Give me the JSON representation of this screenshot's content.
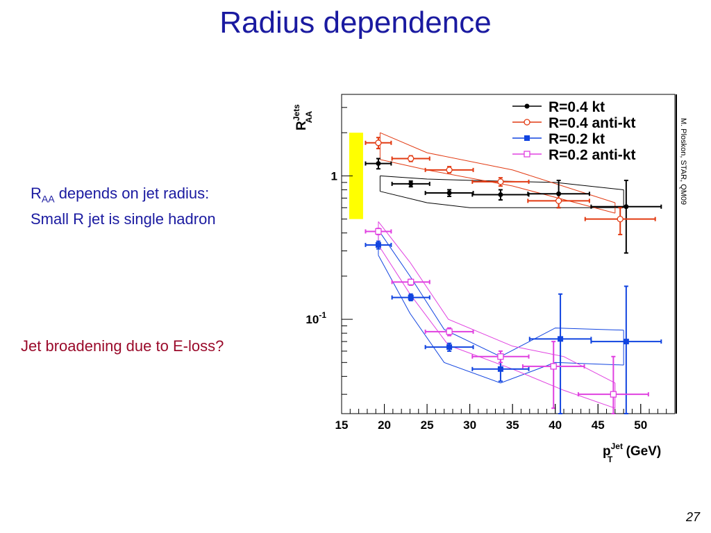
{
  "title": "Radius dependence",
  "notes": {
    "raa_symbol": "R",
    "raa_subscript": "AA",
    "raa_rest": " depends on jet radius:",
    "line2": "Small R jet is single hadron",
    "eloss": "Jet broadening due to E-loss?"
  },
  "credit": "M. Ploskon, STAR, QM09",
  "page_number": "27",
  "colors": {
    "kt04": "#000000",
    "antikt04": "#e23a12",
    "kt02": "#1144e0",
    "antikt02": "#e040e0",
    "band": "#ffff00",
    "title": "#1a1aa0",
    "eloss_text": "#9a0a2a"
  },
  "chart_data": {
    "type": "scatter",
    "yscale": "log",
    "xlim": [
      15,
      54
    ],
    "ylim": [
      0.022,
      3.7
    ],
    "xlabel": {
      "main": "p",
      "sup": "Jet",
      "sub": "T",
      "rest": " (GeV)"
    },
    "ylabel": {
      "main": "R",
      "sup": "Jets",
      "sub": "AA"
    },
    "x_ticks": [
      15,
      20,
      25,
      30,
      35,
      40,
      45,
      50
    ],
    "y_ticks": [
      {
        "value": 1,
        "label": "1",
        "sup": ""
      },
      {
        "value": 0.1,
        "label": "10",
        "sup": "-1"
      }
    ],
    "legend_position": "top-right",
    "normalization_band": {
      "x": 16.7,
      "ylow": 0.5,
      "yhigh": 2.0
    },
    "series": [
      {
        "name": "R=0.4 kt",
        "color_key": "kt04",
        "marker": "filled-circle",
        "points": [
          {
            "x": 19.3,
            "y": 1.22,
            "xerr": 1.5,
            "ylo": 1.12,
            "yhi": 1.32
          },
          {
            "x": 23.1,
            "y": 0.88,
            "xerr": 2.2,
            "ylo": 0.84,
            "yhi": 0.92
          },
          {
            "x": 27.6,
            "y": 0.76,
            "xerr": 2.8,
            "ylo": 0.72,
            "yhi": 0.8
          },
          {
            "x": 33.6,
            "y": 0.74,
            "xerr": 3.3,
            "ylo": 0.68,
            "yhi": 0.8
          },
          {
            "x": 40.4,
            "y": 0.75,
            "xerr": 3.6,
            "ylo": 0.6,
            "yhi": 0.93
          },
          {
            "x": 48.3,
            "y": 0.61,
            "xerr": 4.1,
            "ylo": 0.29,
            "yhi": 0.93
          }
        ],
        "sys_upper": [
          [
            19.5,
            1.0
          ],
          [
            25,
            0.95
          ],
          [
            30,
            0.93
          ],
          [
            40,
            0.9
          ],
          [
            48,
            0.8
          ]
        ],
        "sys_lower": [
          [
            19.5,
            0.78
          ],
          [
            25,
            0.65
          ],
          [
            30,
            0.6
          ],
          [
            40,
            0.6
          ],
          [
            48,
            0.6
          ]
        ]
      },
      {
        "name": "R=0.4 anti-kt",
        "color_key": "antikt04",
        "marker": "open-circle",
        "points": [
          {
            "x": 19.3,
            "y": 1.7,
            "xerr": 1.5,
            "ylo": 1.55,
            "yhi": 1.85
          },
          {
            "x": 23.1,
            "y": 1.32,
            "xerr": 2.2,
            "ylo": 1.26,
            "yhi": 1.38
          },
          {
            "x": 27.6,
            "y": 1.1,
            "xerr": 2.8,
            "ylo": 1.05,
            "yhi": 1.16
          },
          {
            "x": 33.6,
            "y": 0.91,
            "xerr": 3.3,
            "ylo": 0.85,
            "yhi": 0.97
          },
          {
            "x": 40.4,
            "y": 0.67,
            "xerr": 3.6,
            "ylo": 0.6,
            "yhi": 0.76
          },
          {
            "x": 47.6,
            "y": 0.5,
            "xerr": 4.1,
            "ylo": 0.39,
            "yhi": 0.6
          }
        ],
        "sys_upper": [
          [
            19.5,
            2.0
          ],
          [
            25,
            1.45
          ],
          [
            35,
            1.1
          ],
          [
            47,
            0.65
          ]
        ],
        "sys_lower": [
          [
            19.5,
            1.3
          ],
          [
            25,
            1.1
          ],
          [
            35,
            0.85
          ],
          [
            47,
            0.55
          ]
        ]
      },
      {
        "name": "R=0.2 kt",
        "color_key": "kt02",
        "marker": "filled-square",
        "points": [
          {
            "x": 19.3,
            "y": 0.33,
            "xerr": 1.5,
            "ylo": 0.31,
            "yhi": 0.35
          },
          {
            "x": 23.1,
            "y": 0.142,
            "xerr": 2.2,
            "ylo": 0.135,
            "yhi": 0.15
          },
          {
            "x": 27.6,
            "y": 0.064,
            "xerr": 2.8,
            "ylo": 0.06,
            "yhi": 0.068
          },
          {
            "x": 33.6,
            "y": 0.045,
            "xerr": 3.3,
            "ylo": 0.037,
            "yhi": 0.053
          },
          {
            "x": 40.6,
            "y": 0.073,
            "xerr": 3.6,
            "ylo": 0.022,
            "yhi": 0.15
          },
          {
            "x": 48.3,
            "y": 0.07,
            "xerr": 4.1,
            "ylo": 0.022,
            "yhi": 0.17
          }
        ],
        "sys_upper": [
          [
            19.3,
            0.42
          ],
          [
            23,
            0.2
          ],
          [
            27,
            0.085
          ],
          [
            33.6,
            0.055
          ],
          [
            40,
            0.087
          ],
          [
            48,
            0.084
          ]
        ],
        "sys_lower": [
          [
            19.3,
            0.28
          ],
          [
            23,
            0.11
          ],
          [
            27,
            0.05
          ],
          [
            33.6,
            0.036
          ],
          [
            40,
            0.05
          ],
          [
            48,
            0.048
          ]
        ]
      },
      {
        "name": "R=0.2 anti-kt",
        "color_key": "antikt02",
        "marker": "open-square",
        "points": [
          {
            "x": 19.3,
            "y": 0.41,
            "xerr": 1.5,
            "ylo": 0.39,
            "yhi": 0.43
          },
          {
            "x": 23.1,
            "y": 0.182,
            "xerr": 2.2,
            "ylo": 0.173,
            "yhi": 0.19
          },
          {
            "x": 27.6,
            "y": 0.082,
            "xerr": 2.8,
            "ylo": 0.077,
            "yhi": 0.087
          },
          {
            "x": 33.6,
            "y": 0.055,
            "xerr": 3.3,
            "ylo": 0.05,
            "yhi": 0.06
          },
          {
            "x": 39.8,
            "y": 0.047,
            "xerr": 3.6,
            "ylo": 0.024,
            "yhi": 0.07
          },
          {
            "x": 46.8,
            "y": 0.03,
            "xerr": 4.1,
            "ylo": 0.022,
            "yhi": 0.055
          }
        ],
        "sys_upper": [
          [
            19.3,
            0.48
          ],
          [
            23,
            0.25
          ],
          [
            27.5,
            0.1
          ],
          [
            35,
            0.065
          ],
          [
            41,
            0.055
          ],
          [
            47,
            0.036
          ]
        ],
        "sys_lower": [
          [
            19.3,
            0.33
          ],
          [
            23,
            0.15
          ],
          [
            27.5,
            0.066
          ],
          [
            35,
            0.045
          ],
          [
            41,
            0.032
          ],
          [
            47,
            0.024
          ]
        ]
      }
    ]
  }
}
